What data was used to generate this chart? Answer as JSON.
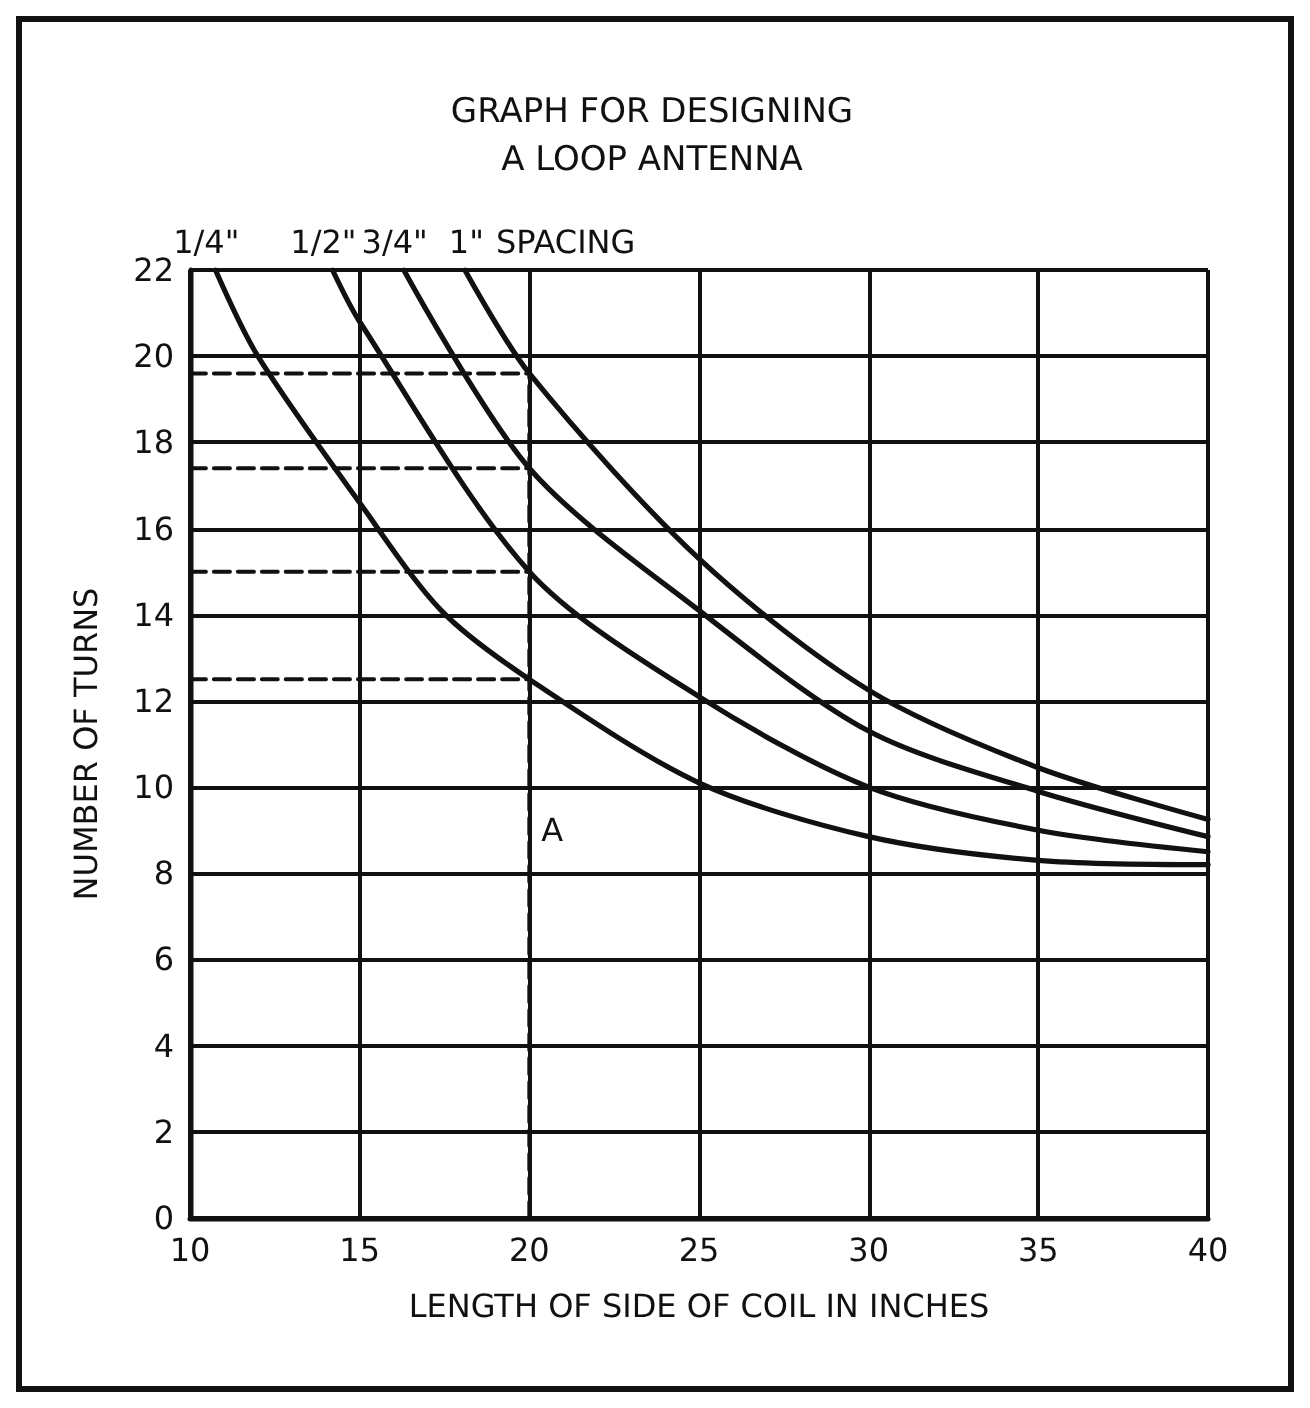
{
  "chart_data": {
    "type": "line",
    "title": "GRAPH FOR DESIGNING\nA LOOP ANTENNA",
    "xlabel": "LENGTH OF SIDE OF COIL IN INCHES",
    "ylabel": "NUMBER OF TURNS",
    "xlim": [
      10,
      40
    ],
    "xticks": [
      10,
      15,
      20,
      25,
      30,
      35,
      40
    ],
    "ylim": [
      0,
      22
    ],
    "yticks": [
      0,
      2,
      4,
      6,
      8,
      10,
      12,
      14,
      16,
      18,
      20,
      22
    ],
    "grid": true,
    "marker": "none",
    "line_style": "solid",
    "series": [
      {
        "name": "1/4\"",
        "color": "#111111",
        "x": [
          10.75,
          12,
          15,
          17.4,
          20,
          25,
          30,
          35,
          40
        ],
        "values": [
          22,
          20,
          16.6,
          14.1,
          12.5,
          10.1,
          8.85,
          8.3,
          8.2
        ]
      },
      {
        "name": "1/2\"",
        "color": "#111111",
        "x": [
          14.2,
          15,
          20,
          25,
          30,
          35,
          40
        ],
        "values": [
          22,
          20.8,
          15,
          12.1,
          10,
          9,
          8.5
        ]
      },
      {
        "name": "3/4\"",
        "color": "#111111",
        "x": [
          16.3,
          20,
          25,
          30,
          35,
          40
        ],
        "values": [
          22,
          17.4,
          14.1,
          11.3,
          9.9,
          8.85
        ]
      },
      {
        "name": "1\"",
        "color": "#111111",
        "x": [
          18.1,
          20,
          25,
          30,
          35,
          40
        ],
        "values": [
          22,
          19.6,
          15.3,
          12.25,
          10.45,
          9.25
        ]
      },
      {
        "color": "#111111",
        "line_style": "dashed",
        "x": [
          10,
          20
        ],
        "values": [
          19.6,
          19.6
        ]
      },
      {
        "color": "#111111",
        "line_style": "dashed",
        "x": [
          10,
          20
        ],
        "values": [
          17.4,
          17.4
        ]
      },
      {
        "color": "#111111",
        "line_style": "dashed",
        "x": [
          10,
          20
        ],
        "values": [
          15,
          15
        ]
      },
      {
        "color": "#111111",
        "line_style": "dashed",
        "x": [
          10,
          20
        ],
        "values": [
          12.5,
          12.5
        ]
      },
      {
        "color": "#111111",
        "line_style": "dashed",
        "x": [
          20,
          20
        ],
        "values": [
          0,
          19.6
        ]
      }
    ],
    "annotations": [
      "SPACING",
      {
        "text": "A",
        "x": 20,
        "y": 9
      }
    ]
  }
}
